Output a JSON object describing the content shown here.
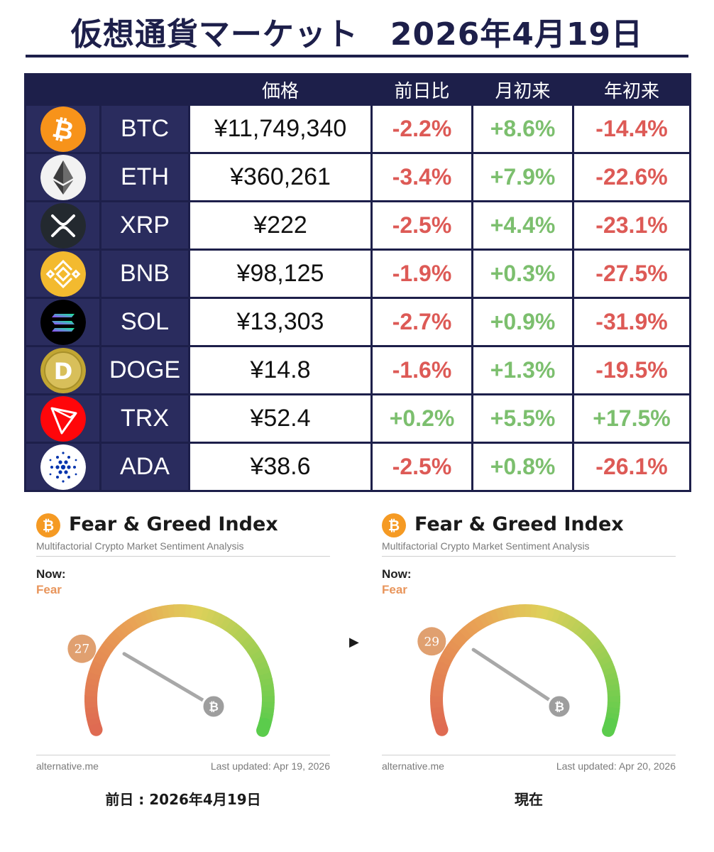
{
  "title": "仮想通貨マーケット　2026年4月19日",
  "table": {
    "headers": [
      "",
      "",
      "価格",
      "前日比",
      "月初来",
      "年初来"
    ],
    "rows": [
      {
        "symbol": "BTC",
        "price": "¥11,749,340",
        "day": "-2.2%",
        "mtd": "+8.6%",
        "ytd": "-14.4%",
        "icon": "bitcoin-icon",
        "icon_color": "#f7931a"
      },
      {
        "symbol": "ETH",
        "price": "¥360,261",
        "day": "-3.4%",
        "mtd": "+7.9%",
        "ytd": "-22.6%",
        "icon": "ethereum-icon",
        "icon_color": "#f2f2f2"
      },
      {
        "symbol": "XRP",
        "price": "¥222",
        "day": "-2.5%",
        "mtd": "+4.4%",
        "ytd": "-23.1%",
        "icon": "xrp-icon",
        "icon_color": "#23292f"
      },
      {
        "symbol": "BNB",
        "price": "¥98,125",
        "day": "-1.9%",
        "mtd": "+0.3%",
        "ytd": "-27.5%",
        "icon": "bnb-icon",
        "icon_color": "#f3ba2f"
      },
      {
        "symbol": "SOL",
        "price": "¥13,303",
        "day": "-2.7%",
        "mtd": "+0.9%",
        "ytd": "-31.9%",
        "icon": "solana-icon",
        "icon_color": "#000000"
      },
      {
        "symbol": "DOGE",
        "price": "¥14.8",
        "day": "-1.6%",
        "mtd": "+1.3%",
        "ytd": "-19.5%",
        "icon": "dogecoin-icon",
        "icon_color": "#c2a633"
      },
      {
        "symbol": "TRX",
        "price": "¥52.4",
        "day": "+0.2%",
        "mtd": "+5.5%",
        "ytd": "+17.5%",
        "icon": "tron-icon",
        "icon_color": "#ff060a"
      },
      {
        "symbol": "ADA",
        "price": "¥38.6",
        "day": "-2.5%",
        "mtd": "+0.8%",
        "ytd": "-26.1%",
        "icon": "cardano-icon",
        "icon_color": "#ffffff"
      }
    ]
  },
  "fear_greed": [
    {
      "title": "Fear & Greed Index",
      "subtitle": "Multifactorial Crypto Market Sentiment Analysis",
      "now_label": "Now:",
      "classification": "Fear",
      "value": 27,
      "source": "alternative.me",
      "updated": "Last updated: Apr 19, 2026",
      "caption": "前日 : 2026年4月19日"
    },
    {
      "title": "Fear & Greed Index",
      "subtitle": "Multifactorial Crypto Market Sentiment Analysis",
      "now_label": "Now:",
      "classification": "Fear",
      "value": 29,
      "source": "alternative.me",
      "updated": "Last updated: Apr 20, 2026",
      "caption": "現在"
    }
  ],
  "arrow": "▶",
  "colors": {
    "navy": "#1d1f4a",
    "row_navy": "#2a2c5e",
    "negative": "#dd5a56",
    "positive": "#7cbf6e",
    "bitcoin": "#f59a23",
    "fear": "#e8955b"
  }
}
